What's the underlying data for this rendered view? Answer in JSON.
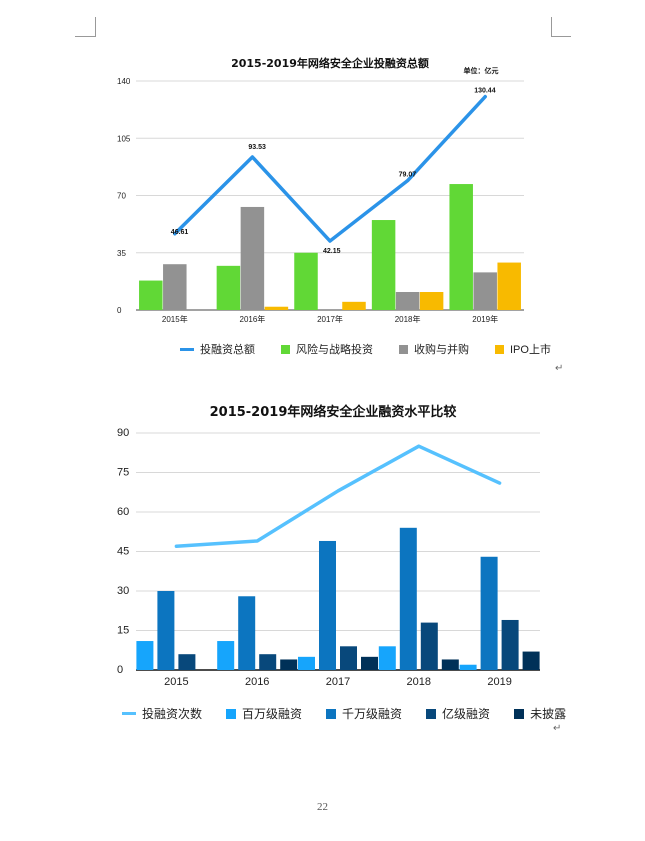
{
  "page": {
    "page_number": "22",
    "return_mark": "↵"
  },
  "chart_data": [
    {
      "type": "bar",
      "title": "2015-2019年网络安全企业投融资总额",
      "unit": "单位：亿元",
      "categories": [
        "2015年",
        "2016年",
        "2017年",
        "2018年",
        "2019年"
      ],
      "ylim": [
        0,
        140
      ],
      "yticks": [
        "0",
        "35",
        "70",
        "105",
        "140"
      ],
      "grid": true,
      "legend_position": "bottom",
      "series": [
        {
          "name": "投融资总额",
          "type": "line",
          "color": "#2b93e8",
          "values": [
            46.61,
            93.53,
            42.15,
            79.07,
            130.44
          ],
          "labels": [
            "46.61",
            "93.53",
            "42.15",
            "79.07",
            "130.44"
          ]
        },
        {
          "name": "风险与战略投资",
          "type": "bar",
          "color": "#61d836",
          "values": [
            18,
            27,
            35,
            55,
            77
          ]
        },
        {
          "name": "收购与并购",
          "type": "bar",
          "color": "#929292",
          "values": [
            28,
            63,
            0,
            11,
            23
          ]
        },
        {
          "name": "IPO上市",
          "type": "bar",
          "color": "#f8ba00",
          "values": [
            0,
            2,
            5,
            11,
            29
          ]
        }
      ]
    },
    {
      "type": "bar",
      "title": "2015-2019年网络安全企业融资水平比较",
      "categories": [
        "2015",
        "2016",
        "2017",
        "2018",
        "2019"
      ],
      "ylim": [
        0,
        90
      ],
      "yticks": [
        "0",
        "15",
        "30",
        "45",
        "60",
        "75",
        "90"
      ],
      "grid": true,
      "legend_position": "bottom",
      "series": [
        {
          "name": "投融资次数",
          "type": "line",
          "color": "#56c1fe",
          "values": [
            47,
            49,
            68,
            85,
            71
          ]
        },
        {
          "name": "百万级融资",
          "type": "bar",
          "color": "#16a5fc",
          "values": [
            11,
            11,
            5,
            9,
            2
          ]
        },
        {
          "name": "千万级融资",
          "type": "bar",
          "color": "#0c75c0",
          "values": [
            30,
            28,
            49,
            54,
            43
          ]
        },
        {
          "name": "亿级融资",
          "type": "bar",
          "color": "#08487b",
          "values": [
            6,
            6,
            9,
            18,
            19
          ]
        },
        {
          "name": "未披露",
          "type": "bar",
          "color": "#003158",
          "values": [
            0,
            4,
            5,
            4,
            7
          ]
        }
      ]
    }
  ]
}
